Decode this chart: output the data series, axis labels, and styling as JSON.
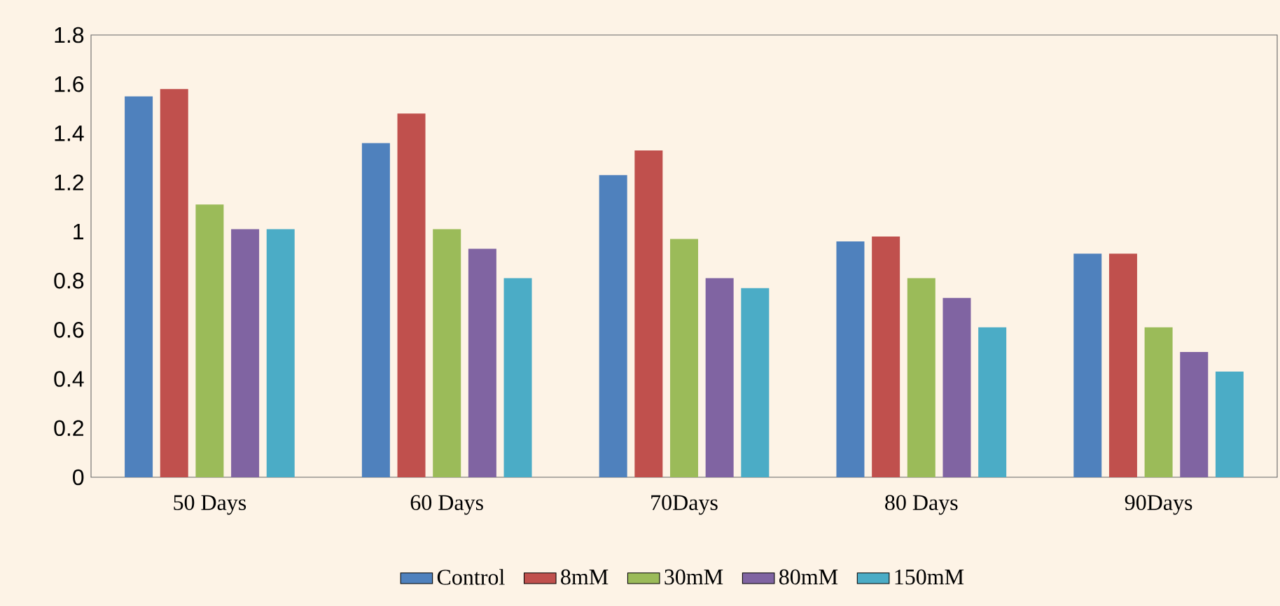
{
  "chart_data": {
    "type": "bar",
    "categories": [
      "50 Days",
      "60 Days",
      "70Days",
      "80 Days",
      "90Days"
    ],
    "series": [
      {
        "name": "Control",
        "color": "#4f81bd",
        "values": [
          1.55,
          1.36,
          1.23,
          0.96,
          0.91
        ]
      },
      {
        "name": "8mM",
        "color": "#c0504d",
        "values": [
          1.58,
          1.48,
          1.33,
          0.98,
          0.91
        ]
      },
      {
        "name": "30mM",
        "color": "#9bbb59",
        "values": [
          1.11,
          1.01,
          0.97,
          0.81,
          0.61
        ]
      },
      {
        "name": "80mM",
        "color": "#8064a2",
        "values": [
          1.01,
          0.93,
          0.81,
          0.73,
          0.51
        ]
      },
      {
        "name": "150mM",
        "color": "#4bacc6",
        "values": [
          1.01,
          0.81,
          0.77,
          0.61,
          0.43
        ]
      }
    ],
    "ylim": [
      0,
      1.8
    ],
    "yticks": [
      0,
      0.2,
      0.4,
      0.6,
      0.8,
      1,
      1.2,
      1.4,
      1.6,
      1.8
    ],
    "grid": false,
    "legend": "bottom"
  }
}
